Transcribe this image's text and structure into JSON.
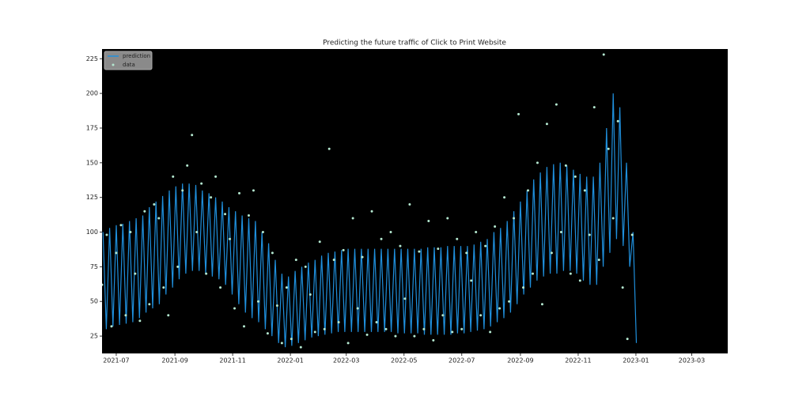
{
  "chart_data": {
    "type": "line",
    "title": "Predicting the future traffic of Click to Print Website",
    "background": "#000000",
    "legend": "upper left",
    "xlim": [
      -15,
      646
    ],
    "ylim": [
      12.5,
      232
    ],
    "xticks": [
      {
        "value": 0,
        "label": "2021-07"
      },
      {
        "value": 62,
        "label": "2021-09"
      },
      {
        "value": 123,
        "label": "2021-11"
      },
      {
        "value": 184,
        "label": "2022-01"
      },
      {
        "value": 243,
        "label": "2022-03"
      },
      {
        "value": 304,
        "label": "2022-05"
      },
      {
        "value": 365,
        "label": "2022-07"
      },
      {
        "value": 427,
        "label": "2022-09"
      },
      {
        "value": 488,
        "label": "2022-11"
      },
      {
        "value": 549,
        "label": "2023-01"
      },
      {
        "value": 608,
        "label": "2023-03"
      }
    ],
    "yticks": [
      25,
      50,
      75,
      100,
      125,
      150,
      175,
      200,
      225
    ],
    "series": [
      {
        "name": "prediction",
        "type": "line",
        "color": "#1f8fdc",
        "x": [
          -14,
          -10.5,
          -7,
          -3.5,
          0,
          3.5,
          7,
          10.5,
          14,
          17.5,
          21,
          24.5,
          28,
          31.5,
          35,
          38.5,
          42,
          45.5,
          49,
          52.5,
          56,
          59.5,
          63,
          66.5,
          70,
          73.5,
          77,
          80.5,
          84,
          87.5,
          91,
          94.5,
          98,
          101.5,
          105,
          108.5,
          112,
          115.5,
          119,
          122.5,
          126,
          129.5,
          133,
          136.5,
          140,
          143.5,
          147,
          150.5,
          154,
          157.5,
          161,
          164.5,
          168,
          171.5,
          175,
          178.5,
          182,
          185.5,
          189,
          192.5,
          196,
          199.5,
          203,
          206.5,
          210,
          213.5,
          217,
          220.5,
          224,
          227.5,
          231,
          234.5,
          238,
          241.5,
          245,
          248.5,
          252,
          255.5,
          259,
          262.5,
          266,
          269.5,
          273,
          276.5,
          280,
          283.5,
          287,
          290.5,
          294,
          297.5,
          301,
          304.5,
          308,
          311.5,
          315,
          318.5,
          322,
          325.5,
          329,
          332.5,
          336,
          339.5,
          343,
          346.5,
          350,
          353.5,
          357,
          360.5,
          364,
          367.5,
          371,
          374.5,
          378,
          381.5,
          385,
          388.5,
          392,
          395.5,
          399,
          402.5,
          406,
          409.5,
          413,
          416.5,
          420,
          423.5,
          427,
          430.5,
          434,
          437.5,
          441,
          444.5,
          448,
          451.5,
          455,
          458.5,
          462,
          465.5,
          469,
          472.5,
          476,
          479.5,
          483,
          486.5,
          490,
          493.5,
          497,
          500.5,
          504,
          507.5,
          511,
          514.5,
          518,
          521.5,
          525,
          528.5,
          532,
          535.5,
          539,
          542.5,
          546,
          549.5
        ],
        "values": [
          100,
          30,
          103,
          32,
          105,
          33,
          106,
          34,
          108,
          35,
          110,
          38,
          112,
          42,
          118,
          45,
          122,
          48,
          126,
          55,
          130,
          60,
          133,
          66,
          135,
          70,
          135,
          72,
          134,
          72,
          130,
          70,
          128,
          68,
          125,
          66,
          122,
          62,
          118,
          55,
          115,
          48,
          112,
          42,
          110,
          38,
          108,
          35,
          100,
          30,
          92,
          25,
          80,
          20,
          70,
          17,
          68,
          18,
          72,
          20,
          75,
          22,
          78,
          24,
          80,
          25,
          83,
          26,
          85,
          27,
          86,
          28,
          87,
          28,
          88,
          28,
          88,
          28,
          88,
          28,
          88,
          28,
          88,
          28,
          88,
          28,
          88,
          28,
          88,
          27,
          88,
          27,
          88,
          27,
          88,
          27,
          88,
          26,
          89,
          26,
          89,
          26,
          89,
          26,
          90,
          26,
          90,
          27,
          90,
          27,
          90,
          28,
          91,
          29,
          93,
          30,
          95,
          32,
          100,
          35,
          103,
          38,
          108,
          42,
          115,
          48,
          122,
          55,
          130,
          60,
          138,
          65,
          143,
          68,
          147,
          70,
          149,
          70,
          150,
          72,
          148,
          72,
          145,
          70,
          142,
          65,
          140,
          62,
          140,
          62,
          150,
          75,
          175,
          85,
          200,
          95,
          190,
          90,
          150,
          75,
          100,
          20
        ]
      },
      {
        "name": "data",
        "type": "scatter",
        "color": "#b4e8d0",
        "x": [
          -15,
          -10,
          -5,
          0,
          5,
          10,
          15,
          20,
          25,
          30,
          35,
          40,
          45,
          50,
          55,
          60,
          65,
          70,
          75,
          80,
          85,
          90,
          95,
          100,
          105,
          110,
          115,
          120,
          125,
          130,
          135,
          140,
          145,
          150,
          155,
          160,
          165,
          170,
          175,
          180,
          185,
          190,
          195,
          200,
          205,
          210,
          215,
          220,
          225,
          230,
          235,
          240,
          245,
          250,
          255,
          260,
          265,
          270,
          275,
          280,
          285,
          290,
          295,
          300,
          305,
          310,
          315,
          320,
          325,
          330,
          335,
          340,
          345,
          350,
          355,
          360,
          365,
          370,
          375,
          380,
          385,
          390,
          395,
          400,
          405,
          410,
          415,
          420,
          425,
          430,
          435,
          440,
          445,
          450,
          455,
          460,
          465,
          470,
          475,
          480,
          485,
          490,
          495,
          500,
          505,
          510,
          515,
          520,
          525,
          530,
          535,
          540,
          545
        ],
        "values": [
          62,
          98,
          32,
          85,
          105,
          40,
          100,
          70,
          36,
          115,
          48,
          120,
          110,
          60,
          40,
          140,
          75,
          130,
          148,
          170,
          100,
          135,
          70,
          125,
          140,
          60,
          113,
          95,
          45,
          128,
          32,
          112,
          130,
          50,
          100,
          27,
          85,
          47,
          20,
          60,
          23,
          80,
          17,
          75,
          55,
          28,
          93,
          30,
          160,
          80,
          35,
          87,
          20,
          110,
          45,
          82,
          26,
          115,
          35,
          95,
          30,
          100,
          25,
          90,
          52,
          120,
          25,
          86,
          30,
          108,
          22,
          88,
          40,
          110,
          28,
          95,
          30,
          85,
          65,
          100,
          40,
          90,
          28,
          104,
          45,
          125,
          50,
          110,
          185,
          60,
          130,
          70,
          150,
          48,
          178,
          85,
          192,
          100,
          148,
          70,
          140,
          65,
          130,
          98,
          190,
          80,
          228,
          160,
          110,
          180,
          60,
          23,
          98
        ]
      }
    ]
  }
}
